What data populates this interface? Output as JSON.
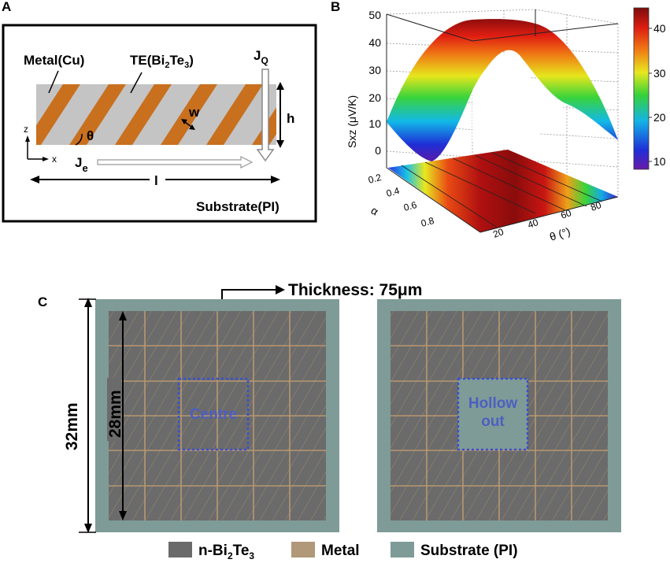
{
  "panel_a": {
    "label": "A",
    "metal": "Metal(Cu)",
    "te": "TE(Bi",
    "te_sub": "2",
    "te_mid": "Te",
    "te_sub2": "3",
    "te_end": ")",
    "jq": "J",
    "jq_sub": "Q",
    "h": "h",
    "w": "w",
    "theta": "θ",
    "z": "z",
    "x": "x",
    "je": "J",
    "je_sub": "e",
    "l": "l",
    "substrate": "Substrate(PI)"
  },
  "panel_b": {
    "label": "B",
    "zlabel": "Sxz (μV/K)",
    "ylabel": "α",
    "xlabel": "θ (°)",
    "zticks": [
      "50",
      "40",
      "30",
      "20",
      "10",
      "0"
    ],
    "alpha_ticks": [
      "0.2",
      "0.4",
      "0.6",
      "0.8"
    ],
    "theta_ticks": [
      "20",
      "40",
      "60",
      "80"
    ],
    "cbar_ticks": [
      "40",
      "30",
      "20",
      "10"
    ]
  },
  "panel_c": {
    "label": "C",
    "thickness": "Thickness: 75μm",
    "dim_outer": "32mm",
    "dim_inner": "28mm",
    "centre": "Centre",
    "hollow1": "Hollow",
    "hollow2": "out",
    "legend": [
      {
        "name": "n-Bi",
        "sub": "2",
        "mid": "Te",
        "sub2": "3",
        "color": "#6a6a6a"
      },
      {
        "name": "Metal",
        "color": "#b09878"
      },
      {
        "name": "Substrate (PI)",
        "color": "#7e9b97"
      }
    ]
  },
  "chart_data": {
    "type": "surface",
    "title": "",
    "xlabel": "θ (°)",
    "ylabel": "α",
    "zlabel": "Sxz (μV/K)",
    "xlim": [
      0,
      90
    ],
    "ylim": [
      0.1,
      0.9
    ],
    "zlim": [
      0,
      50
    ],
    "colorbar_range": [
      8,
      47
    ],
    "peak": {
      "theta": 45,
      "value": 47
    },
    "edges": {
      "theta_0": 9,
      "theta_90": 9
    }
  }
}
